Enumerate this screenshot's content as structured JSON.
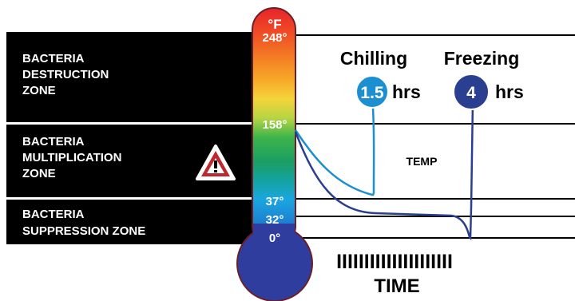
{
  "zones": [
    {
      "lines": [
        "BACTERIA",
        "DESTRUCTION",
        "ZONE"
      ]
    },
    {
      "lines": [
        "BACTERIA",
        "MULTIPLICATION",
        "ZONE"
      ]
    },
    {
      "lines": [
        "BACTERIA",
        "SUPPRESSION ZONE"
      ]
    }
  ],
  "thermometer": {
    "unit": "°F",
    "ticks": [
      "248°",
      "158°",
      "37°",
      "32°",
      "0°"
    ]
  },
  "chilling": {
    "label": "Chilling",
    "value": "1.5",
    "unit": "hrs",
    "color": "#1b8fd1"
  },
  "freezing": {
    "label": "Freezing",
    "value": "4",
    "unit": "hrs",
    "color": "#2a3f8f"
  },
  "temp_label": "TEMP",
  "time_label": "TIME",
  "time_ticks": "IIIIIIIIIIIIIIIIIIIII",
  "warning_icon": "warning-triangle-icon",
  "colors": {
    "panel": "#000000",
    "bulb": "#2f3e9e",
    "tube_outline": "#6b1f2a"
  }
}
